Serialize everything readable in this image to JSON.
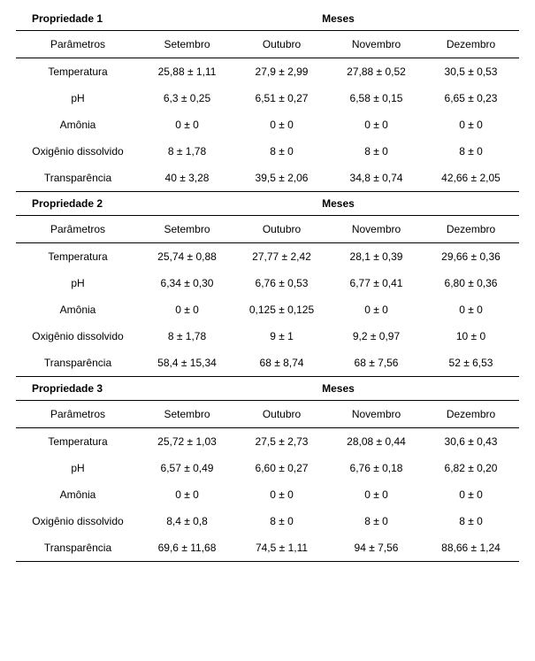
{
  "columns": {
    "param": "Parâmetros",
    "m1": "Setembro",
    "m2": "Outubro",
    "m3": "Novembro",
    "m4": "Dezembro"
  },
  "mesesLabel": "Meses",
  "sections": [
    {
      "title": "Propriedade 1",
      "rows": [
        {
          "param": "Temperatura",
          "v1": "25,88 ± 1,11",
          "v2": "27,9 ± 2,99",
          "v3": "27,88 ± 0,52",
          "v4": "30,5 ± 0,53"
        },
        {
          "param": "pH",
          "v1": "6,3 ± 0,25",
          "v2": "6,51 ± 0,27",
          "v3": "6,58 ± 0,15",
          "v4": "6,65 ± 0,23"
        },
        {
          "param": "Amônia",
          "v1": "0 ± 0",
          "v2": "0 ± 0",
          "v3": "0 ± 0",
          "v4": "0 ± 0"
        },
        {
          "param": "Oxigênio dissolvido",
          "v1": "8 ± 1,78",
          "v2": "8 ± 0",
          "v3": "8 ± 0",
          "v4": "8 ± 0"
        },
        {
          "param": "Transparência",
          "v1": "40 ± 3,28",
          "v2": "39,5 ± 2,06",
          "v3": "34,8 ± 0,74",
          "v4": "42,66 ± 2,05"
        }
      ]
    },
    {
      "title": "Propriedade 2",
      "rows": [
        {
          "param": "Temperatura",
          "v1": "25,74 ± 0,88",
          "v2": "27,77 ± 2,42",
          "v3": "28,1 ± 0,39",
          "v4": "29,66 ± 0,36"
        },
        {
          "param": "pH",
          "v1": "6,34 ± 0,30",
          "v2": "6,76 ± 0,53",
          "v3": "6,77 ± 0,41",
          "v4": "6,80 ± 0,36"
        },
        {
          "param": "Amônia",
          "v1": "0 ± 0",
          "v2": "0,125 ± 0,125",
          "v3": "0 ± 0",
          "v4": "0 ± 0"
        },
        {
          "param": "Oxigênio dissolvido",
          "v1": "8 ± 1,78",
          "v2": "9 ± 1",
          "v3": "9,2 ± 0,97",
          "v4": "10 ± 0"
        },
        {
          "param": "Transparência",
          "v1": "58,4 ± 15,34",
          "v2": "68 ± 8,74",
          "v3": "68 ± 7,56",
          "v4": "52 ± 6,53"
        }
      ]
    },
    {
      "title": "Propriedade 3",
      "rows": [
        {
          "param": "Temperatura",
          "v1": "25,72 ± 1,03",
          "v2": "27,5 ± 2,73",
          "v3": "28,08 ± 0,44",
          "v4": "30,6 ± 0,43"
        },
        {
          "param": "pH",
          "v1": "6,57 ± 0,49",
          "v2": "6,60 ± 0,27",
          "v3": "6,76 ± 0,18",
          "v4": "6,82 ± 0,20"
        },
        {
          "param": "Amônia",
          "v1": "0 ± 0",
          "v2": "0 ± 0",
          "v3": "0 ± 0",
          "v4": "0 ± 0"
        },
        {
          "param": "Oxigênio dissolvido",
          "v1": "8,4 ± 0,8",
          "v2": "8 ± 0",
          "v3": "8 ± 0",
          "v4": "8 ± 0"
        },
        {
          "param": "Transparência",
          "v1": "69,6 ± 11,68",
          "v2": "74,5 ± 1,11",
          "v3": "94 ± 7,56",
          "v4": "88,66 ± 1,24"
        }
      ]
    }
  ]
}
